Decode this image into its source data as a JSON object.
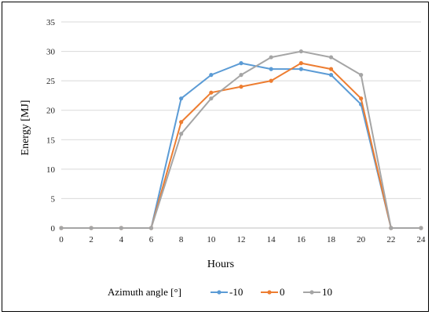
{
  "chart_data": {
    "type": "line",
    "title": "",
    "xlabel": "Hours",
    "ylabel": "Energy [MJ]",
    "x": [
      0,
      2,
      4,
      6,
      8,
      10,
      12,
      14,
      16,
      18,
      20,
      22,
      24
    ],
    "xlim": [
      0,
      24
    ],
    "ylim": [
      0,
      35
    ],
    "yticks": [
      0,
      5,
      10,
      15,
      20,
      25,
      30,
      35
    ],
    "grid": true,
    "legend_title": "Azimuth angle [°]",
    "legend_position": "bottom",
    "series": [
      {
        "name": "-10",
        "color": "#5b9bd5",
        "values": [
          0,
          0,
          0,
          0,
          22,
          26,
          28,
          27,
          27,
          26,
          21,
          0,
          0
        ]
      },
      {
        "name": "0",
        "color": "#ed7d31",
        "values": [
          0,
          0,
          0,
          0,
          18,
          23,
          24,
          25,
          28,
          27,
          22,
          0,
          0
        ]
      },
      {
        "name": "10",
        "color": "#a5a5a5",
        "values": [
          0,
          0,
          0,
          0,
          16,
          22,
          26,
          29,
          30,
          29,
          26,
          0,
          0
        ]
      }
    ]
  }
}
